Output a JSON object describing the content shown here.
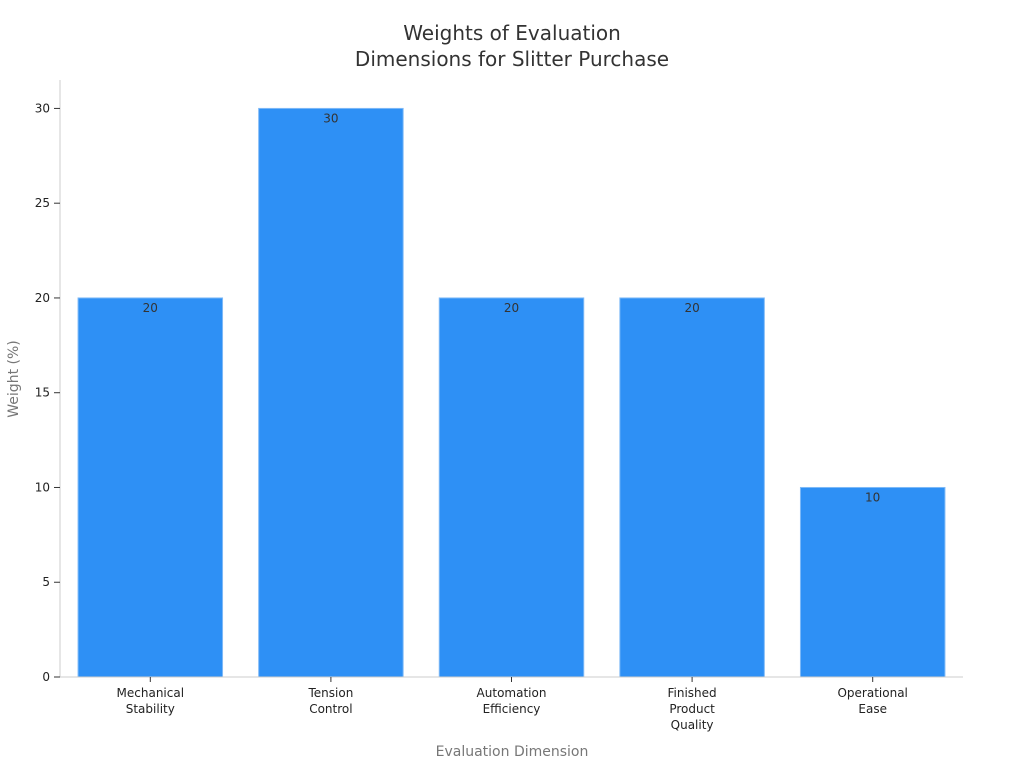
{
  "chart_data": {
    "type": "bar",
    "title": [
      "Weights of Evaluation",
      "Dimensions for Slitter Purchase"
    ],
    "xlabel": "Evaluation Dimension",
    "ylabel": "Weight (%)",
    "categories": [
      [
        "Mechanical",
        "Stability"
      ],
      [
        "Tension",
        "Control"
      ],
      [
        "Automation",
        "Efficiency"
      ],
      [
        "Finished",
        "Product",
        "Quality"
      ],
      [
        "Operational",
        "Ease"
      ]
    ],
    "values": [
      20,
      30,
      20,
      20,
      10
    ],
    "data_labels": [
      "20",
      "30",
      "20",
      "20",
      "10"
    ],
    "ylim": [
      0,
      31.5
    ],
    "yticks": [
      0,
      5,
      10,
      15,
      20,
      25,
      30
    ],
    "grid": false,
    "bar_color": "#2e90f5"
  }
}
